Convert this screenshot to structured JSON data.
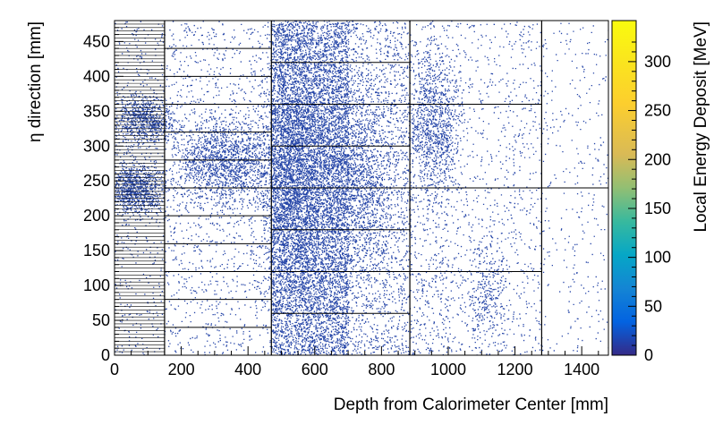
{
  "chart_data": {
    "type": "heatmap",
    "title": "",
    "xlabel": "Depth from Calorimeter Center [mm]",
    "ylabel": "η direction [mm]",
    "zlabel": "Local Energy Deposit [MeV]",
    "xlim": [
      0,
      1480
    ],
    "ylim": [
      0,
      480
    ],
    "zlim": [
      0,
      320
    ],
    "x_ticks": [
      0,
      200,
      400,
      600,
      800,
      1000,
      1200,
      1400
    ],
    "y_ticks": [
      0,
      50,
      100,
      150,
      200,
      250,
      300,
      350,
      400,
      450
    ],
    "z_ticks": [
      0,
      50,
      100,
      150,
      200,
      250,
      300
    ],
    "colormap": "parula",
    "point_color": "#2646a8",
    "layer_boundaries_x": [
      150,
      470,
      885,
      1280
    ],
    "cell_heights_y": [
      {
        "x_range": [
          0,
          150
        ],
        "height": 5
      },
      {
        "x_range": [
          150,
          470
        ],
        "height": 40
      },
      {
        "x_range": [
          470,
          885
        ],
        "height": 60
      },
      {
        "x_range": [
          885,
          1280
        ],
        "height": 120
      },
      {
        "x_range": [
          1280,
          1480
        ],
        "height": 240
      }
    ],
    "hotspots": [
      {
        "x": 60,
        "y": 240
      },
      {
        "x": 90,
        "y": 340
      },
      {
        "x": 330,
        "y": 280
      },
      {
        "x": 540,
        "y": 270
      },
      {
        "x": 720,
        "y": 260
      },
      {
        "x": 960,
        "y": 330
      },
      {
        "x": 1120,
        "y": 90
      }
    ]
  }
}
